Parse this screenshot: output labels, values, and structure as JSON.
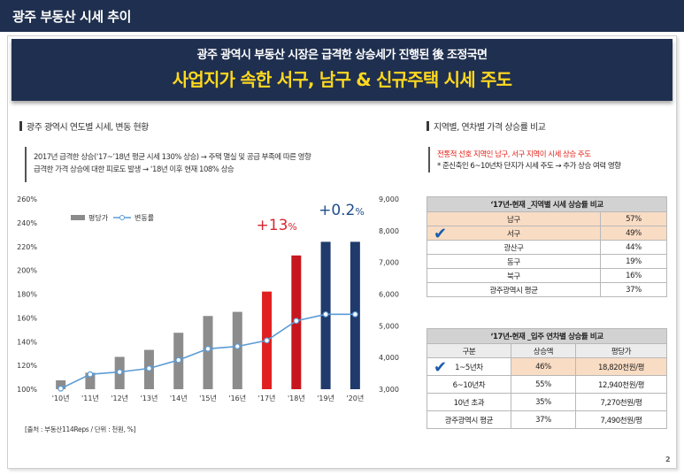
{
  "header": {
    "title": "광주 부동산 시세 추이"
  },
  "banner": {
    "subtitle": "광주 광역시 부동산 시장은 급격한 상승세가 진행된 後 조정국면",
    "headline": "사업지가 속한 서구, 남구 & 신규주택 시세 주도"
  },
  "left_section": {
    "title": "광주 광역시 연도별 시세, 변동 현황",
    "note_line1": "2017년 급격한 상승(‘17~’18년 평균 시세 130% 상승) → 주택 멸실 및 공급 부족에 따른 영향",
    "note_line2": "급격한 가격 상승에 대한 피로도 발생 → ‘18년 이후 현재 108% 상승",
    "source": "[출처 : 부동산114Reps / 단위 : 천원, %]"
  },
  "right_section": {
    "title": "지역별, 연차별 가격 상승률 비교",
    "note_red": "전통적 선호 지역인 남구, 서구 지역이 시세 상승 주도",
    "note_black": "* 준신축인 6~10년차 단지가 시세 주도 → 추가 상승 여력 영향"
  },
  "region_table": {
    "title": "‘17년-현재 _지역별 시세 상승률 비교",
    "rows": [
      {
        "region": "남구",
        "rate": "57%"
      },
      {
        "region": "서구",
        "rate": "49%"
      },
      {
        "region": "광산구",
        "rate": "44%"
      },
      {
        "region": "동구",
        "rate": "19%"
      },
      {
        "region": "북구",
        "rate": "16%"
      },
      {
        "region": "광주광역시 평균",
        "rate": "37%"
      }
    ]
  },
  "age_table": {
    "title": "‘17년-현재 _입주 연차별 상승률 비교",
    "headers": [
      "구분",
      "상승액",
      "평당가"
    ],
    "rows": [
      {
        "group": "1~5년차",
        "rise": "46%",
        "price": "18,820천원/평"
      },
      {
        "group": "6~10년차",
        "rise": "55%",
        "price": "12,940천원/평"
      },
      {
        "group": "10년 초과",
        "rise": "35%",
        "price": "7,270천원/평"
      },
      {
        "group": "광주광역시 평균",
        "rise": "37%",
        "price": "7,490천원/평"
      }
    ]
  },
  "chart_data": {
    "type": "bar",
    "categories": [
      "'10년",
      "'11년",
      "'12년",
      "'13년",
      "'14년",
      "'15년",
      "'16년",
      "'17년",
      "'18년",
      "'19년",
      "'20년"
    ],
    "series": [
      {
        "name": "평당가",
        "type": "bar",
        "axis": "right",
        "values": [
          3280,
          3520,
          4020,
          4240,
          4780,
          5310,
          5440,
          6080,
          7220,
          7650,
          7650
        ]
      },
      {
        "name": "변동률",
        "type": "line",
        "axis": "left",
        "values": [
          100.5,
          112.5,
          114.5,
          117.5,
          124.5,
          134,
          136,
          141,
          157.5,
          163,
          163
        ]
      }
    ],
    "bar_colors": [
      "#8c8c8c",
      "#8c8c8c",
      "#8c8c8c",
      "#8c8c8c",
      "#8c8c8c",
      "#8c8c8c",
      "#8c8c8c",
      "#e02020",
      "#c8161e",
      "#1f3a6b",
      "#1f3a6b"
    ],
    "line_color": "#5b9bd5",
    "y_left": {
      "ticks": [
        "100%",
        "120%",
        "140%",
        "160%",
        "180%",
        "200%",
        "220%",
        "240%",
        "260%"
      ],
      "min": 100,
      "max": 260
    },
    "y_right": {
      "ticks": [
        "3,000",
        "4,000",
        "5,000",
        "6,000",
        "7,000",
        "8,000",
        "9,000"
      ],
      "min": 3000,
      "max": 9000
    },
    "annotations": [
      {
        "main": "+13",
        "unit": "%",
        "color": "#d7262d"
      },
      {
        "main": "+0.2",
        "unit": "%",
        "color": "#1f4e8c"
      }
    ],
    "legend": {
      "position": "top-left"
    }
  }
}
